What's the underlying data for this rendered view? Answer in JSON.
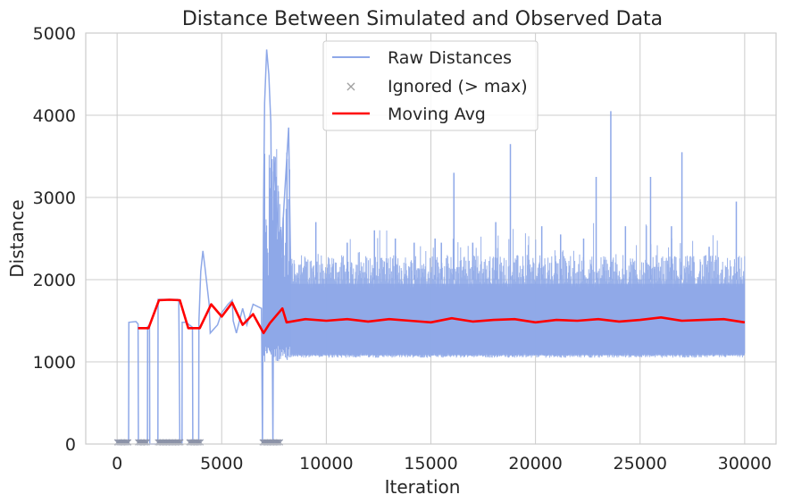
{
  "chart_data": {
    "type": "line",
    "title": "Distance Between Simulated and Observed Data",
    "xlabel": "Iteration",
    "ylabel": "Distance",
    "xlim": [
      -1500,
      31500
    ],
    "ylim": [
      0,
      5000
    ],
    "xticks": [
      0,
      5000,
      10000,
      15000,
      20000,
      25000,
      30000
    ],
    "yticks": [
      0,
      1000,
      2000,
      3000,
      4000,
      5000
    ],
    "grid": true,
    "legend_position": "upper center",
    "colors": {
      "raw": "#8ea8e8",
      "ignored": "#8c93a8",
      "moving_avg": "#ff0000",
      "grid": "#cccccc",
      "axes": "#cccccc"
    },
    "series": [
      {
        "name": "Raw Distances",
        "kind": "line",
        "note_band": "dense noisy band between ~1050 and ~2300 from x=8000 to x=30000",
        "band_low": 1050,
        "band_high": 2300,
        "points": [
          [
            0,
            0
          ],
          [
            550,
            0
          ],
          [
            560,
            1480
          ],
          [
            900,
            1490
          ],
          [
            1000,
            1460
          ],
          [
            1020,
            0
          ],
          [
            1450,
            0
          ],
          [
            1460,
            1430
          ],
          [
            1550,
            1430
          ],
          [
            1560,
            0
          ],
          [
            1950,
            0
          ],
          [
            1960,
            1760
          ],
          [
            2900,
            1760
          ],
          [
            2950,
            1750
          ],
          [
            3000,
            0
          ],
          [
            3100,
            0
          ],
          [
            3110,
            1480
          ],
          [
            3300,
            1480
          ],
          [
            3600,
            1420
          ],
          [
            3620,
            0
          ],
          [
            3900,
            0
          ],
          [
            3910,
            1480
          ],
          [
            4000,
            2100
          ],
          [
            4100,
            2350
          ],
          [
            4200,
            2150
          ],
          [
            4400,
            1700
          ],
          [
            4450,
            1350
          ],
          [
            4800,
            1450
          ],
          [
            5000,
            1600
          ],
          [
            5300,
            1700
          ],
          [
            5500,
            1750
          ],
          [
            5550,
            1500
          ],
          [
            5700,
            1350
          ],
          [
            6000,
            1650
          ],
          [
            6200,
            1450
          ],
          [
            6500,
            1700
          ],
          [
            6900,
            1650
          ],
          [
            6950,
            0
          ],
          [
            7000,
            2900
          ],
          [
            7050,
            4150
          ],
          [
            7150,
            4800
          ],
          [
            7250,
            4500
          ],
          [
            7350,
            3900
          ],
          [
            7450,
            0
          ],
          [
            7500,
            3500
          ],
          [
            7800,
            2100
          ],
          [
            8000,
            3000
          ],
          [
            8200,
            3850
          ],
          [
            8300,
            2000
          ]
        ],
        "spikes": [
          [
            9500,
            2700
          ],
          [
            11000,
            2450
          ],
          [
            12300,
            2600
          ],
          [
            13300,
            2500
          ],
          [
            14200,
            2450
          ],
          [
            15200,
            2500
          ],
          [
            15500,
            2450
          ],
          [
            16100,
            3300
          ],
          [
            17000,
            2450
          ],
          [
            18100,
            2700
          ],
          [
            18800,
            3650
          ],
          [
            20300,
            2650
          ],
          [
            21200,
            2550
          ],
          [
            22300,
            2500
          ],
          [
            22900,
            3250
          ],
          [
            23600,
            4050
          ],
          [
            24300,
            2650
          ],
          [
            25500,
            3250
          ],
          [
            26500,
            2650
          ],
          [
            27000,
            3550
          ],
          [
            28300,
            2400
          ],
          [
            29600,
            2950
          ]
        ]
      },
      {
        "name": "Ignored (> max)",
        "kind": "scatter",
        "marker": "x",
        "x_ranges": [
          [
            0,
            550
          ],
          [
            1000,
            1450
          ],
          [
            1950,
            3050
          ],
          [
            3450,
            4000
          ],
          [
            6950,
            7800
          ]
        ],
        "y": 30
      },
      {
        "name": "Moving Avg",
        "kind": "line",
        "points": [
          [
            1000,
            1410
          ],
          [
            1500,
            1410
          ],
          [
            2000,
            1750
          ],
          [
            2500,
            1755
          ],
          [
            3000,
            1750
          ],
          [
            3400,
            1410
          ],
          [
            3950,
            1410
          ],
          [
            4500,
            1700
          ],
          [
            5000,
            1550
          ],
          [
            5500,
            1720
          ],
          [
            6000,
            1450
          ],
          [
            6500,
            1580
          ],
          [
            7000,
            1350
          ],
          [
            7300,
            1470
          ],
          [
            7900,
            1650
          ],
          [
            8100,
            1480
          ],
          [
            9000,
            1520
          ],
          [
            10000,
            1500
          ],
          [
            11000,
            1520
          ],
          [
            12000,
            1490
          ],
          [
            13000,
            1520
          ],
          [
            14000,
            1500
          ],
          [
            15000,
            1480
          ],
          [
            16000,
            1530
          ],
          [
            17000,
            1490
          ],
          [
            18000,
            1510
          ],
          [
            19000,
            1520
          ],
          [
            20000,
            1480
          ],
          [
            21000,
            1510
          ],
          [
            22000,
            1500
          ],
          [
            23000,
            1520
          ],
          [
            24000,
            1490
          ],
          [
            25000,
            1510
          ],
          [
            26000,
            1540
          ],
          [
            27000,
            1500
          ],
          [
            28000,
            1510
          ],
          [
            29000,
            1520
          ],
          [
            30000,
            1480
          ]
        ]
      }
    ]
  }
}
